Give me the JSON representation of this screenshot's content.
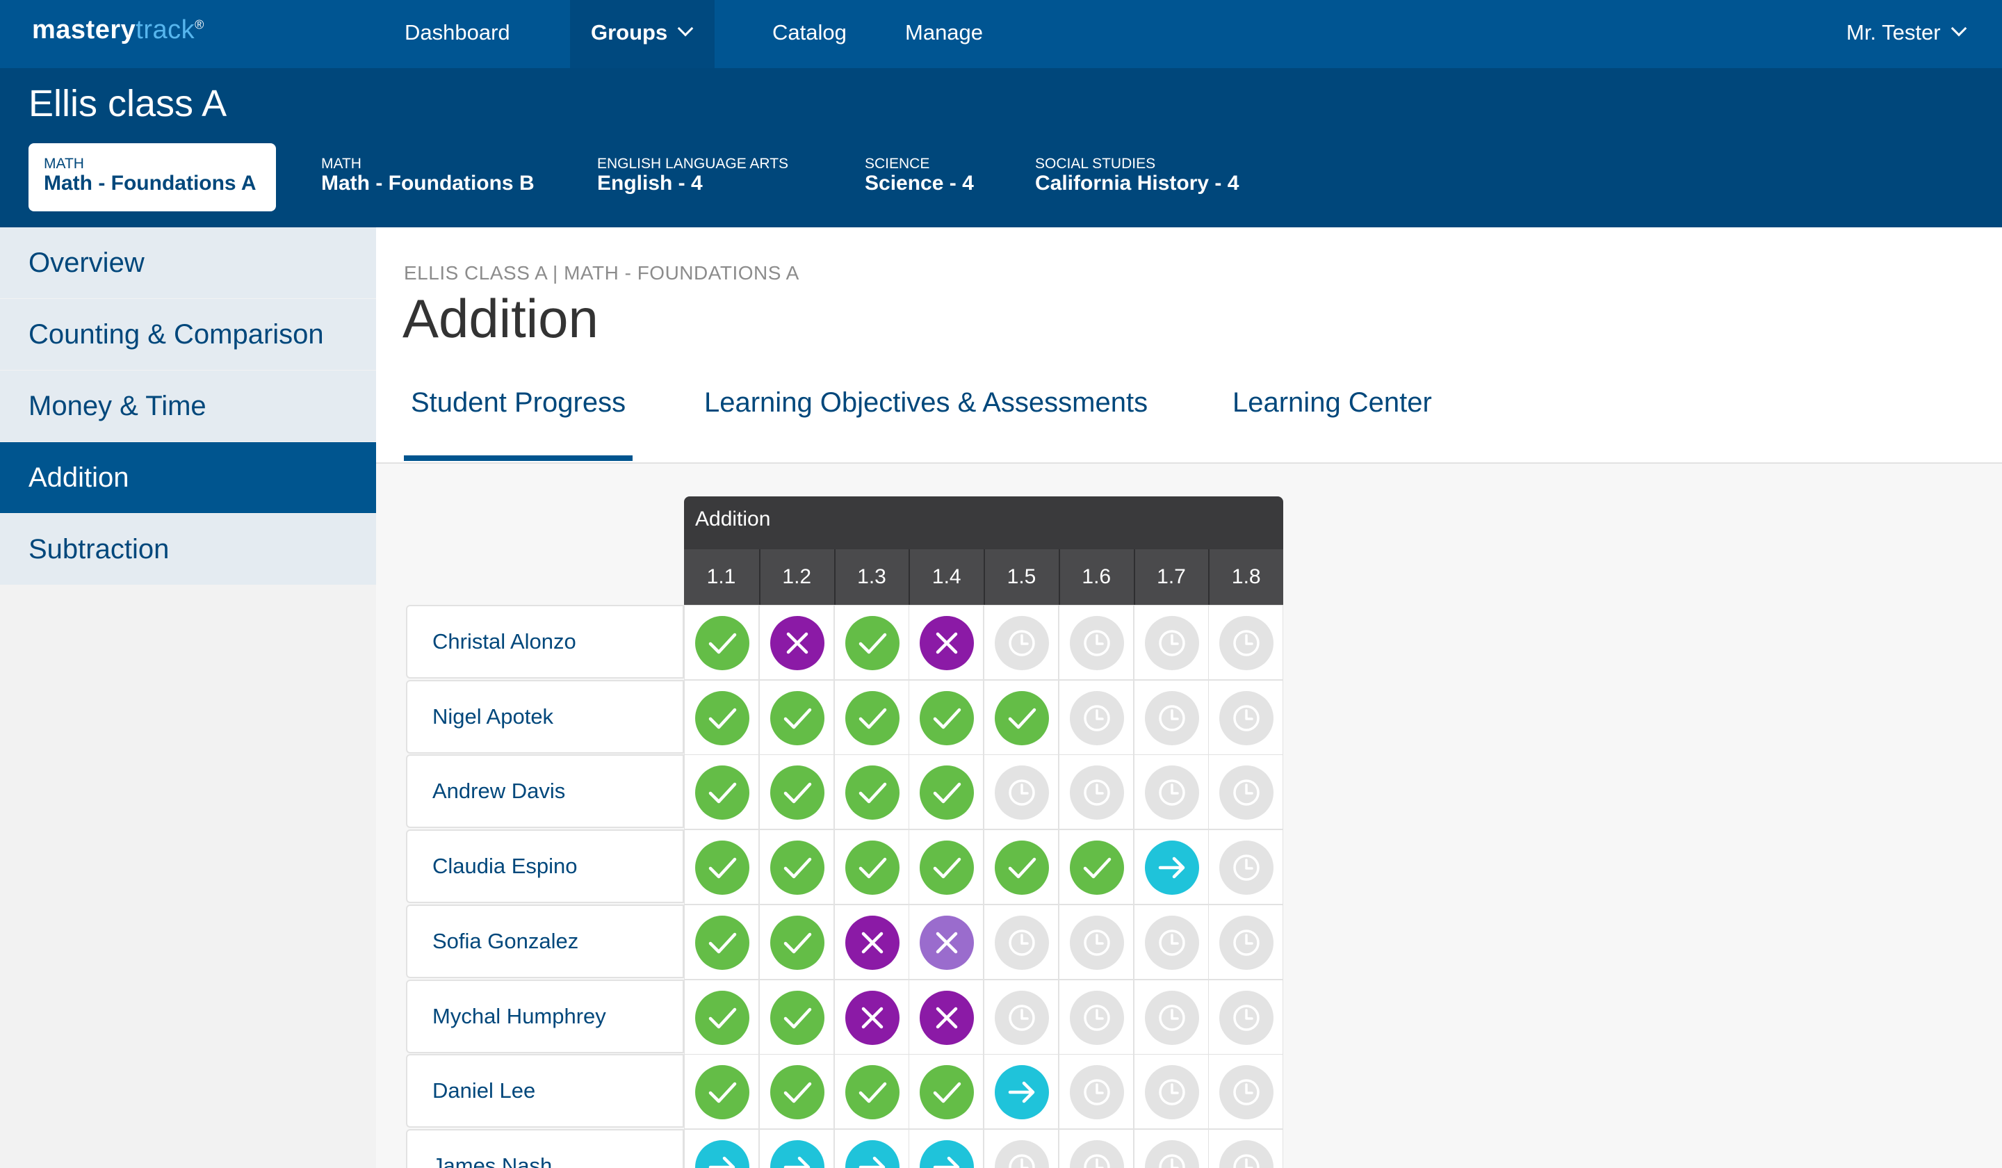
{
  "brand": {
    "part1": "mastery",
    "part2": "track",
    "mark": "®"
  },
  "topnav": {
    "items": [
      {
        "label": "Dashboard"
      },
      {
        "label": "Groups"
      },
      {
        "label": "Catalog"
      },
      {
        "label": "Manage"
      }
    ],
    "active": "Groups",
    "user": "Mr. Tester"
  },
  "group": {
    "title": "Ellis class A",
    "courses": [
      {
        "category": "MATH",
        "name": "Math - Foundations A"
      },
      {
        "category": "MATH",
        "name": "Math - Foundations B"
      },
      {
        "category": "ENGLISH LANGUAGE ARTS",
        "name": "English - 4"
      },
      {
        "category": "SCIENCE",
        "name": "Science - 4"
      },
      {
        "category": "SOCIAL STUDIES",
        "name": "California History - 4"
      }
    ],
    "active_course": "Math - Foundations A"
  },
  "sidebar": {
    "items": [
      {
        "label": "Overview"
      },
      {
        "label": "Counting & Comparison"
      },
      {
        "label": "Money & Time"
      },
      {
        "label": "Addition"
      },
      {
        "label": "Subtraction"
      }
    ],
    "active": "Addition"
  },
  "main": {
    "breadcrumb": "ELLIS CLASS A | MATH - FOUNDATIONS A",
    "title": "Addition",
    "tabs": [
      {
        "label": "Student Progress"
      },
      {
        "label": "Learning Objectives & Assessments"
      },
      {
        "label": "Learning Center"
      }
    ],
    "active_tab": "Student Progress"
  },
  "grid": {
    "title": "Addition",
    "columns": [
      "1.1",
      "1.2",
      "1.3",
      "1.4",
      "1.5",
      "1.6",
      "1.7",
      "1.8"
    ],
    "legend_icons": {
      "mastered": "check-icon",
      "failed": "x-icon",
      "failed-retry": "x-icon",
      "in-progress": "arrow-right-icon",
      "not-started": "clock-icon"
    },
    "colors": {
      "mastered": "#64bd47",
      "failed": "#8b1aa6",
      "failed-retry": "#9a6ccd",
      "in-progress": "#1fc3da",
      "not-started": "#e3e3e3"
    },
    "students": [
      {
        "name": "Christal Alonzo",
        "statuses": [
          "mastered",
          "failed",
          "mastered",
          "failed",
          "not-started",
          "not-started",
          "not-started",
          "not-started"
        ]
      },
      {
        "name": "Nigel Apotek",
        "statuses": [
          "mastered",
          "mastered",
          "mastered",
          "mastered",
          "mastered",
          "not-started",
          "not-started",
          "not-started"
        ]
      },
      {
        "name": "Andrew Davis",
        "statuses": [
          "mastered",
          "mastered",
          "mastered",
          "mastered",
          "not-started",
          "not-started",
          "not-started",
          "not-started"
        ]
      },
      {
        "name": "Claudia Espino",
        "statuses": [
          "mastered",
          "mastered",
          "mastered",
          "mastered",
          "mastered",
          "mastered",
          "in-progress",
          "not-started"
        ]
      },
      {
        "name": "Sofia Gonzalez",
        "statuses": [
          "mastered",
          "mastered",
          "failed",
          "failed-retry",
          "not-started",
          "not-started",
          "not-started",
          "not-started"
        ]
      },
      {
        "name": "Mychal Humphrey",
        "statuses": [
          "mastered",
          "mastered",
          "failed",
          "failed",
          "not-started",
          "not-started",
          "not-started",
          "not-started"
        ]
      },
      {
        "name": "Daniel Lee",
        "statuses": [
          "mastered",
          "mastered",
          "mastered",
          "mastered",
          "in-progress",
          "not-started",
          "not-started",
          "not-started"
        ]
      },
      {
        "name": "James Nash",
        "statuses": [
          "in-progress",
          "in-progress",
          "in-progress",
          "in-progress",
          "not-started",
          "not-started",
          "not-started",
          "not-started"
        ]
      }
    ]
  }
}
